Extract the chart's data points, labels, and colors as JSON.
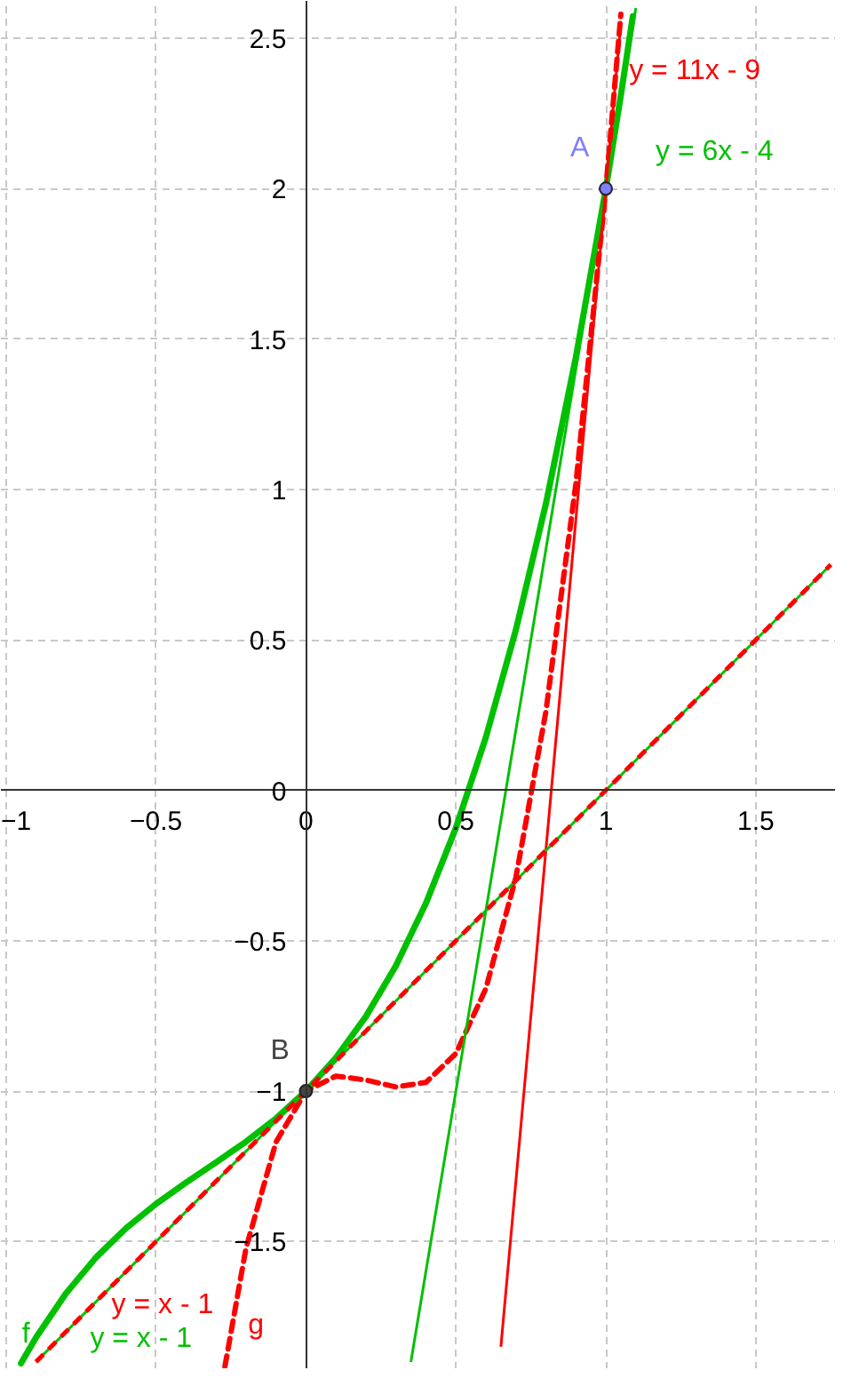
{
  "chart_data": {
    "type": "line",
    "xlim": [
      -1.017,
      1.767
    ],
    "ylim": [
      -1.924,
      2.624
    ],
    "xticks": [
      -1,
      -0.5,
      0,
      0.5,
      1,
      1.5
    ],
    "yticks": [
      -1.5,
      -1,
      -0.5,
      0,
      0.5,
      1,
      1.5,
      2,
      2.5
    ],
    "grid": true,
    "series": [
      {
        "name": "f",
        "color": "#00c000",
        "x": [
          -0.95,
          -0.9,
          -0.8,
          -0.7,
          -0.6,
          -0.5,
          -0.4,
          -0.3,
          -0.2,
          -0.1,
          0,
          0.1,
          0.2,
          0.3,
          0.4,
          0.5,
          0.6,
          0.7,
          0.8,
          0.9,
          1.0,
          1.05,
          1.09
        ],
        "values": [
          -1.905,
          -1.819,
          -1.672,
          -1.553,
          -1.456,
          -1.375,
          -1.304,
          -1.237,
          -1.168,
          -1.091,
          -1,
          -0.889,
          -0.752,
          -0.583,
          -0.376,
          -0.125,
          0.176,
          0.533,
          0.952,
          1.439,
          2,
          2.31,
          2.573
        ]
      },
      {
        "name": "g",
        "color": "#ff0000",
        "line_style": "dashed",
        "x": [
          -0.27,
          -0.2,
          -0.1,
          0,
          0.1,
          0.2,
          0.3,
          0.4,
          0.5,
          0.6,
          0.7,
          0.8,
          0.9,
          1.0,
          1.05
        ],
        "values": [
          -1.915,
          -1.523,
          -1.17,
          -1,
          -0.95,
          -0.963,
          -0.986,
          -0.971,
          -0.875,
          -0.659,
          -0.29,
          0.261,
          1.018,
          2,
          2.58
        ]
      },
      {
        "name": "y = 6x - 4",
        "color": "#00c000",
        "x": [
          0.35,
          1.1
        ],
        "values": [
          -1.9,
          2.6
        ]
      },
      {
        "name": "y = 11x - 9",
        "color": "#ff0000",
        "x": [
          0.65,
          1.05
        ],
        "values": [
          -1.85,
          2.55
        ]
      },
      {
        "name": "y = x - 1",
        "color": "#00c000",
        "x": [
          -0.9,
          1.75
        ],
        "values": [
          -1.9,
          0.75
        ]
      },
      {
        "name": "y = x - 1",
        "color": "#ff0000",
        "line_style": "dashed",
        "x": [
          -0.9,
          1.75
        ],
        "values": [
          -1.9,
          0.75
        ]
      },
      {
        "name": "A",
        "type": "scatter",
        "marker": "circle",
        "color": "#7f7fff",
        "x": [
          1
        ],
        "values": [
          2
        ]
      },
      {
        "name": "B",
        "type": "scatter",
        "marker": "circle",
        "color": "#444444",
        "x": [
          0
        ],
        "values": [
          -1
        ]
      }
    ]
  }
}
